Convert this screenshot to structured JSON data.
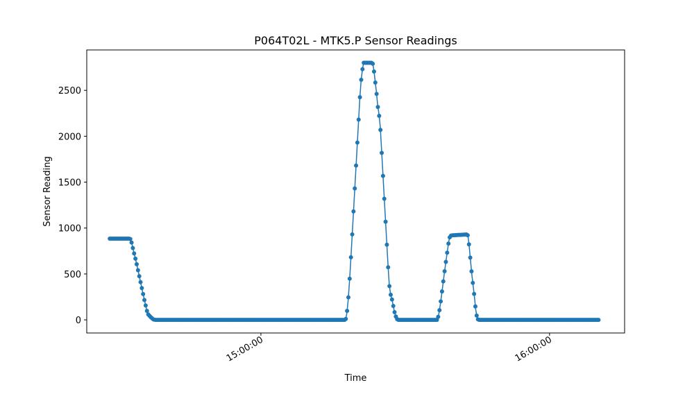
{
  "chart_data": {
    "type": "line",
    "title": "P064T02L - MTK5.P Sensor Readings",
    "xlabel": "Time",
    "ylabel": "Sensor Reading",
    "xlim": [
      "14:23:48",
      "16:15:36"
    ],
    "ylim": [
      -143,
      2940
    ],
    "yticks": [
      0,
      500,
      1000,
      1500,
      2000,
      2500
    ],
    "xticks": [
      {
        "time": "15:00:00",
        "label": "15:00:00"
      },
      {
        "time": "16:00:00",
        "label": "16:00:00"
      }
    ],
    "grid": false,
    "legend": "none",
    "marker": "circle",
    "color": "#1f77b4",
    "series": [
      {
        "name": "",
        "points": [
          [
            "14:28:35",
            885
          ],
          [
            "14:32:49",
            885
          ],
          [
            "14:33:05",
            850
          ],
          [
            "14:33:21",
            790
          ],
          [
            "14:33:37",
            730
          ],
          [
            "14:33:54",
            670
          ],
          [
            "14:34:10",
            610
          ],
          [
            "14:34:26",
            545
          ],
          [
            "14:34:42",
            480
          ],
          [
            "14:34:58",
            415
          ],
          [
            "14:35:14",
            350
          ],
          [
            "14:35:30",
            285
          ],
          [
            "14:35:46",
            220
          ],
          [
            "14:36:02",
            160
          ],
          [
            "14:36:18",
            100
          ],
          [
            "14:36:34",
            60
          ],
          [
            "14:37:06",
            30
          ],
          [
            "14:37:38",
            5
          ],
          [
            "14:38:00",
            0
          ],
          [
            "15:17:37",
            0
          ],
          [
            "15:17:53",
            80
          ],
          [
            "15:18:09",
            220
          ],
          [
            "15:18:25",
            420
          ],
          [
            "15:18:41",
            650
          ],
          [
            "15:18:57",
            900
          ],
          [
            "15:19:13",
            1150
          ],
          [
            "15:19:29",
            1400
          ],
          [
            "15:19:45",
            1650
          ],
          [
            "15:20:01",
            1900
          ],
          [
            "15:20:17",
            2150
          ],
          [
            "15:20:33",
            2400
          ],
          [
            "15:20:49",
            2600
          ],
          [
            "15:21:05",
            2720
          ],
          [
            "15:21:21",
            2800
          ],
          [
            "15:23:13",
            2800
          ],
          [
            "15:23:29",
            2720
          ],
          [
            "15:23:45",
            2600
          ],
          [
            "15:24:01",
            2480
          ],
          [
            "15:24:17",
            2330
          ],
          [
            "15:24:33",
            2240
          ],
          [
            "15:24:49",
            2100
          ],
          [
            "15:25:05",
            1850
          ],
          [
            "15:25:21",
            1600
          ],
          [
            "15:25:37",
            1350
          ],
          [
            "15:25:53",
            1100
          ],
          [
            "15:26:09",
            850
          ],
          [
            "15:26:25",
            600
          ],
          [
            "15:26:41",
            380
          ],
          [
            "15:26:57",
            280
          ],
          [
            "15:27:13",
            230
          ],
          [
            "15:27:29",
            160
          ],
          [
            "15:27:45",
            90
          ],
          [
            "15:28:01",
            40
          ],
          [
            "15:28:17",
            10
          ],
          [
            "15:28:30",
            0
          ],
          [
            "15:36:38",
            0
          ],
          [
            "15:36:54",
            40
          ],
          [
            "15:37:10",
            120
          ],
          [
            "15:37:26",
            220
          ],
          [
            "15:37:42",
            330
          ],
          [
            "15:37:58",
            440
          ],
          [
            "15:38:14",
            550
          ],
          [
            "15:38:30",
            650
          ],
          [
            "15:38:46",
            750
          ],
          [
            "15:39:02",
            850
          ],
          [
            "15:39:18",
            910
          ],
          [
            "15:39:34",
            920
          ],
          [
            "15:42:46",
            930
          ],
          [
            "15:43:02",
            920
          ],
          [
            "15:43:18",
            800
          ],
          [
            "15:43:34",
            650
          ],
          [
            "15:43:50",
            500
          ],
          [
            "15:44:06",
            380
          ],
          [
            "15:44:22",
            260
          ],
          [
            "15:44:38",
            120
          ],
          [
            "15:44:54",
            30
          ],
          [
            "15:45:10",
            0
          ],
          [
            "16:10:26",
            0
          ]
        ]
      }
    ]
  }
}
